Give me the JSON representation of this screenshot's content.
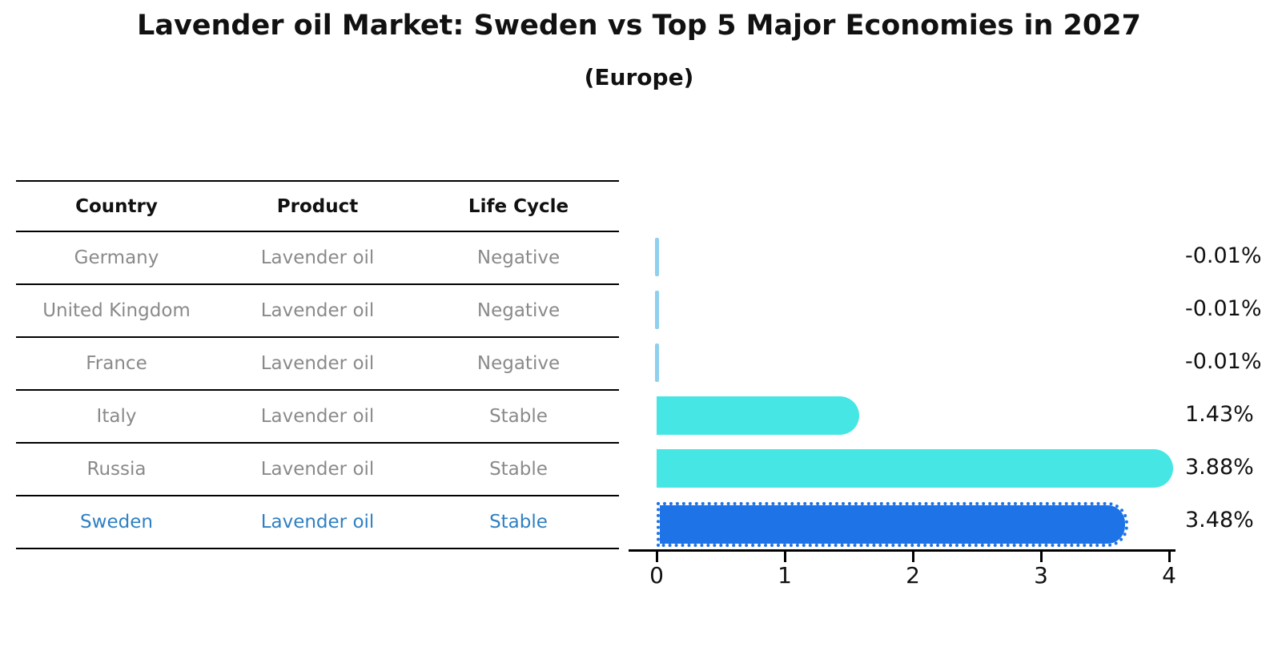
{
  "title": "Lavender oil Market: Sweden vs Top 5 Major Economies in 2027",
  "subtitle": "(Europe)",
  "colors": {
    "bar_cyan": "#45e6e3",
    "bar_blue": "#1e73e6",
    "bar_negative_sliver": "#8fd0ee",
    "highlight_text": "#2f80c3",
    "row_text": "#8a8a8a",
    "axis_text": "#111111"
  },
  "table": {
    "headers": [
      "Country",
      "Product",
      "Life Cycle"
    ],
    "rows": [
      {
        "country": "Germany",
        "product": "Lavender oil",
        "life_cycle": "Negative",
        "highlight": false
      },
      {
        "country": "United Kingdom",
        "product": "Lavender oil",
        "life_cycle": "Negative",
        "highlight": false
      },
      {
        "country": "France",
        "product": "Lavender oil",
        "life_cycle": "Negative",
        "highlight": false
      },
      {
        "country": "Italy",
        "product": "Lavender oil",
        "life_cycle": "Stable",
        "highlight": false
      },
      {
        "country": "Russia",
        "product": "Lavender oil",
        "life_cycle": "Stable",
        "highlight": false
      },
      {
        "country": "Sweden",
        "product": "Lavender oil",
        "life_cycle": "Stable",
        "highlight": true
      }
    ]
  },
  "chart_data": {
    "type": "bar",
    "orientation": "horizontal",
    "title": "Lavender oil Market: Sweden vs Top 5 Major Economies in 2027 (Europe)",
    "categories": [
      "Germany",
      "United Kingdom",
      "France",
      "Italy",
      "Russia",
      "Sweden"
    ],
    "values": [
      -0.01,
      -0.01,
      -0.01,
      1.43,
      3.88,
      3.48
    ],
    "value_labels": [
      "-0.01%",
      "-0.01%",
      "-0.01%",
      "1.43%",
      "3.88%",
      "3.48%"
    ],
    "units": "%",
    "xlim": [
      0,
      4
    ],
    "x_ticks": [
      0,
      1,
      2,
      3,
      4
    ],
    "grid": false,
    "legend": false,
    "highlight_category": "Sweden",
    "bar_styles": [
      {
        "color": "#8fd0ee",
        "style": "sliver"
      },
      {
        "color": "#8fd0ee",
        "style": "sliver"
      },
      {
        "color": "#8fd0ee",
        "style": "sliver"
      },
      {
        "color": "#45e6e3",
        "style": "solid"
      },
      {
        "color": "#45e6e3",
        "style": "solid"
      },
      {
        "color": "#1e73e6",
        "style": "dotted"
      }
    ]
  }
}
